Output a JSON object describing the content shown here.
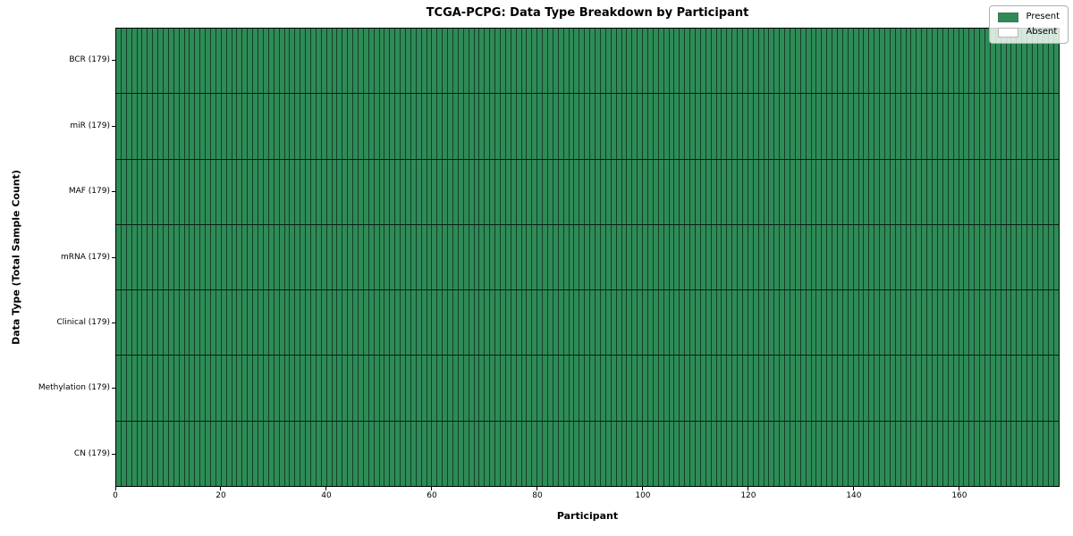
{
  "figure": {
    "title": "TCGA-PCPG: Data Type Breakdown by Participant",
    "xlabel": "Participant",
    "ylabel": "Data Type (Total Sample Count)"
  },
  "legend": {
    "items": [
      {
        "label": "Present",
        "color": "#2e8b57"
      },
      {
        "label": "Absent",
        "color": "#ffffff"
      }
    ]
  },
  "chart_data": {
    "type": "heatmap",
    "title": "TCGA-PCPG: Data Type Breakdown by Participant",
    "xlabel": "Participant",
    "ylabel": "Data Type (Total Sample Count)",
    "n_participants": 179,
    "xlim": [
      0,
      179
    ],
    "x_ticks": [
      0,
      20,
      40,
      60,
      80,
      100,
      120,
      140,
      160
    ],
    "categories": [
      {
        "label": "BCR (179)",
        "total": 179,
        "present": 179,
        "absent": 0
      },
      {
        "label": "miR (179)",
        "total": 179,
        "present": 179,
        "absent": 0
      },
      {
        "label": "MAF (179)",
        "total": 179,
        "present": 179,
        "absent": 0
      },
      {
        "label": "mRNA (179)",
        "total": 179,
        "present": 179,
        "absent": 0
      },
      {
        "label": "Clinical (179)",
        "total": 179,
        "present": 179,
        "absent": 0
      },
      {
        "label": "Methylation (179)",
        "total": 179,
        "present": 179,
        "absent": 0
      },
      {
        "label": "CN (179)",
        "total": 179,
        "present": 179,
        "absent": 0
      }
    ],
    "cell_colors": {
      "present": "#2e8b57",
      "absent": "#ffffff"
    },
    "legend_position": "upper right",
    "grid": "per-cell edges, black row separators"
  }
}
